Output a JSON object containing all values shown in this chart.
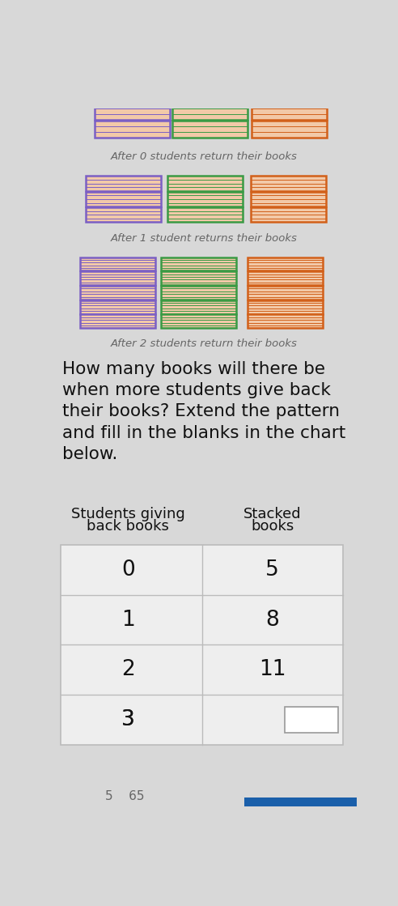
{
  "bg_color": "#d8d8d8",
  "book_fill": "#f2c9a8",
  "book_colors": [
    "#7b5fc4",
    "#3a9a44",
    "#d2601a"
  ],
  "section0_label": "After 0 students return their books",
  "section1_label": "After 1 student returns their books",
  "section2_label": "After 2 students return their books",
  "question_line1": "How many books will there be",
  "question_line2": "when more students give back",
  "question_line3": "their books? Extend the pattern",
  "question_line4": "and fill in the blanks in the chart",
  "question_line5": "below.",
  "col1_header_line1": "Students giving",
  "col1_header_line2": "back books",
  "col2_header_line1": "Stacked",
  "col2_header_line2": "books",
  "table_rows": [
    [
      "0",
      "5"
    ],
    [
      "1",
      "8"
    ],
    [
      "2",
      "11"
    ],
    [
      "3",
      ""
    ]
  ],
  "label_color": "#666666",
  "text_color": "#111111",
  "table_line_color": "#bbbbbb",
  "blank_box_color": "#ffffff",
  "bottom_bar_color": "#1a5faa",
  "bottom_text": "5    65"
}
